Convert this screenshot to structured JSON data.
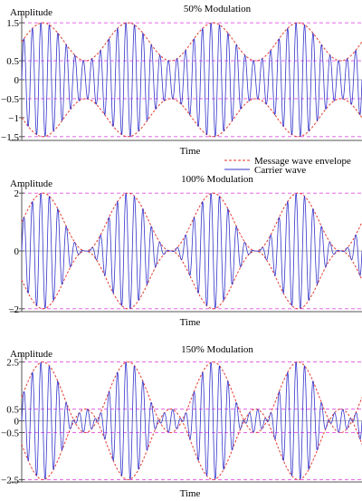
{
  "legend": {
    "envelope_label": "Message wave envelope",
    "carrier_label": "Carrier wave"
  },
  "colors": {
    "carrier": "#3333cc",
    "envelope": "#e23a2e",
    "guide": "#e052e0",
    "axis": "#555555"
  },
  "chart_data": [
    {
      "type": "line",
      "title": "50% Modulation",
      "xlabel": "Time",
      "ylabel": "Amplitude",
      "modulation_index": 0.5,
      "carrier_amplitude": 1,
      "message_cycles": 4,
      "carrier_cycles_per_message_cycle": 10,
      "ylim": [
        -1.6,
        1.6
      ],
      "yticks": [
        {
          "value": 1.5,
          "label": "1.5"
        },
        {
          "value": 0.5,
          "label": "0.5"
        },
        {
          "value": 0,
          "label": "0"
        },
        {
          "value": -0.5,
          "label": "−0.5"
        },
        {
          "value": -1,
          "label": "−1"
        },
        {
          "value": -1.5,
          "label": "−1.5"
        }
      ],
      "guide_lines": [
        1.5,
        0.5,
        -0.5,
        -1.5
      ],
      "series": [
        {
          "name": "Message wave envelope",
          "style": "dashed",
          "formula": "±(1 + m·sin(2π·f_m·t))"
        },
        {
          "name": "Carrier wave",
          "style": "solid",
          "formula": "(1 + m·sin(2π·f_m·t))·sin(2π·f_c·t)"
        }
      ],
      "grid": false
    },
    {
      "type": "line",
      "title": "100% Modulation",
      "xlabel": "Time",
      "ylabel": "Amplitude",
      "modulation_index": 1.0,
      "carrier_amplitude": 1,
      "message_cycles": 4,
      "carrier_cycles_per_message_cycle": 10,
      "ylim": [
        -2.1,
        2.1
      ],
      "yticks": [
        {
          "value": 2,
          "label": "2"
        },
        {
          "value": 0,
          "label": "0"
        },
        {
          "value": -2,
          "label": "−2"
        }
      ],
      "guide_lines": [
        2,
        -2
      ],
      "series": [
        {
          "name": "Message wave envelope",
          "style": "dashed",
          "formula": "±(1 + m·sin(2π·f_m·t))"
        },
        {
          "name": "Carrier wave",
          "style": "solid",
          "formula": "(1 + m·sin(2π·f_m·t))·sin(2π·f_c·t)"
        }
      ],
      "grid": false
    },
    {
      "type": "line",
      "title": "150% Modulation",
      "xlabel": "Time",
      "ylabel": "Amplitude",
      "modulation_index": 1.5,
      "carrier_amplitude": 1,
      "message_cycles": 4,
      "carrier_cycles_per_message_cycle": 10,
      "ylim": [
        -2.6,
        2.6
      ],
      "yticks": [
        {
          "value": 2.5,
          "label": "2.5"
        },
        {
          "value": 0.5,
          "label": "0.5"
        },
        {
          "value": 0,
          "label": "0"
        },
        {
          "value": -0.5,
          "label": "−0.5"
        },
        {
          "value": -2.5,
          "label": "−2.5"
        }
      ],
      "guide_lines": [
        2.5,
        0.5,
        -0.5,
        -2.5
      ],
      "series": [
        {
          "name": "Message wave envelope",
          "style": "dashed",
          "formula": "±(1 + m·sin(2π·f_m·t))"
        },
        {
          "name": "Carrier wave",
          "style": "solid",
          "formula": "(1 + m·sin(2π·f_m·t))·sin(2π·f_c·t)"
        }
      ],
      "grid": false
    }
  ]
}
